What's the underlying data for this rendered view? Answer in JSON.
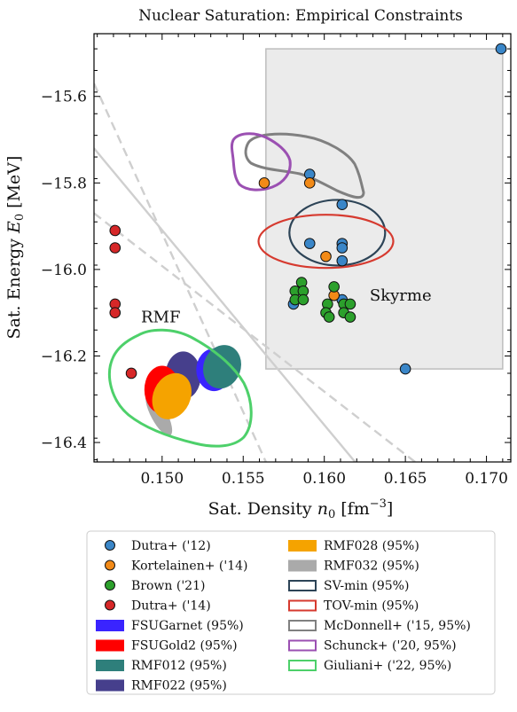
{
  "chart_data": {
    "type": "scatter",
    "title": "Nuclear Saturation: Empirical Constraints",
    "xlabel": "Sat. Density n₀ [fm⁻³]",
    "ylabel": "Sat. Energy E₀ [MeV]",
    "xlim": [
      0.1458,
      0.1715
    ],
    "ylim": [
      -16.445,
      -15.455
    ],
    "x_ticks": [
      0.15,
      0.155,
      0.16,
      0.165,
      0.17
    ],
    "x_tick_labels": [
      "0.150",
      "0.155",
      "0.160",
      "0.165",
      "0.170"
    ],
    "y_ticks": [
      -15.6,
      -15.8,
      -16.0,
      -16.2,
      -16.4
    ],
    "y_tick_labels": [
      "−15.6",
      "−15.8",
      "−16.0",
      "−16.2",
      "−16.4"
    ],
    "grid": false,
    "annotations": [
      {
        "text": "RMF",
        "x": 0.1487,
        "y": -16.11
      },
      {
        "text": "Skyrme",
        "x": 0.1628,
        "y": -16.06
      }
    ],
    "skyrme_box": {
      "x": [
        0.1564,
        0.171
      ],
      "y": [
        -16.23,
        -15.49
      ],
      "color": "#ebebeb"
    },
    "bands": [
      {
        "kind": "dashed",
        "x1": 0.1458,
        "y1": -15.57,
        "x2": 0.1564,
        "y2": -16.445
      },
      {
        "kind": "solid",
        "x1": 0.1458,
        "y1": -15.72,
        "x2": 0.1619,
        "y2": -16.445
      },
      {
        "kind": "dashed",
        "x1": 0.1458,
        "y1": -15.87,
        "x2": 0.1656,
        "y2": -16.445
      }
    ],
    "series": [
      {
        "name": "Dutra+ ('12)",
        "marker": "circle",
        "color": "#3a86c8",
        "points": [
          [
            0.1709,
            -15.49
          ],
          [
            0.1591,
            -15.78
          ],
          [
            0.1611,
            -15.85
          ],
          [
            0.1591,
            -15.94
          ],
          [
            0.1611,
            -15.94
          ],
          [
            0.1611,
            -15.95
          ],
          [
            0.1611,
            -15.98
          ],
          [
            0.1581,
            -16.08
          ],
          [
            0.1611,
            -16.07
          ],
          [
            0.165,
            -16.23
          ]
        ]
      },
      {
        "name": "Kortelainen+ ('14)",
        "marker": "circle",
        "color": "#f28a17",
        "points": [
          [
            0.1563,
            -15.8
          ],
          [
            0.1591,
            -15.8
          ],
          [
            0.1601,
            -15.97
          ],
          [
            0.1606,
            -16.06
          ]
        ]
      },
      {
        "name": "Brown ('21)",
        "marker": "circle",
        "color": "#2ca02c",
        "points": [
          [
            0.1582,
            -16.05
          ],
          [
            0.1586,
            -16.03
          ],
          [
            0.1582,
            -16.07
          ],
          [
            0.1587,
            -16.05
          ],
          [
            0.1587,
            -16.07
          ],
          [
            0.1606,
            -16.04
          ],
          [
            0.1602,
            -16.08
          ],
          [
            0.1612,
            -16.08
          ],
          [
            0.1616,
            -16.08
          ],
          [
            0.1601,
            -16.1
          ],
          [
            0.1603,
            -16.11
          ],
          [
            0.1612,
            -16.1
          ],
          [
            0.1616,
            -16.11
          ]
        ]
      },
      {
        "name": "Dutra+ ('14)",
        "marker": "circle",
        "color": "#d62728",
        "points": [
          [
            0.1471,
            -15.91
          ],
          [
            0.1471,
            -15.95
          ],
          [
            0.1471,
            -16.08
          ],
          [
            0.1471,
            -16.1
          ],
          [
            0.1481,
            -16.24
          ]
        ]
      }
    ],
    "ellipses": [
      {
        "name": "RMF032 (95%)",
        "color": "#aaaaaa",
        "cx": 0.1498,
        "cy": -16.335,
        "rx": 9,
        "ry": 27,
        "rot": -28
      },
      {
        "name": "RMF022 (95%)",
        "color": "#463f8c",
        "cx": 0.1513,
        "cy": -16.245,
        "rx": 20,
        "ry": 27,
        "rot": 0
      },
      {
        "name": "FSUGold2 (95%)",
        "color": "#ff0000",
        "cx": 0.15,
        "cy": -16.278,
        "rx": 20,
        "ry": 27,
        "rot": 0
      },
      {
        "name": "FSUGarnet (95%)",
        "color": "#3a24ff",
        "cx": 0.1532,
        "cy": -16.232,
        "rx": 20,
        "ry": 24,
        "rot": 0
      },
      {
        "name": "RMF028 (95%)",
        "color": "#f5a300",
        "cx": 0.1506,
        "cy": -16.293,
        "rx": 21,
        "ry": 27,
        "rot": 25
      },
      {
        "name": "RMF012 (95%)",
        "color": "#2e7f7b",
        "cx": 0.1537,
        "cy": -16.225,
        "rx": 21,
        "ry": 25,
        "rot": 20
      }
    ],
    "contours": [
      {
        "name": "SV-min (95%)",
        "color": "#2d4457",
        "shape": "ellipse",
        "cx": 0.1608,
        "cy": -15.915,
        "rx": 54,
        "ry": 37,
        "rot": 0
      },
      {
        "name": "TOV-min (95%)",
        "color": "#d63a2f",
        "shape": "ellipse",
        "cx": 0.1601,
        "cy": -15.935,
        "rx": 76,
        "ry": 30,
        "rot": 0
      },
      {
        "name": "McDonnell+ ('15, 95%)",
        "color": "#808080",
        "shape": "blob"
      },
      {
        "name": "Schunck+ ('20, 95%)",
        "color": "#9b50b2",
        "shape": "blob"
      },
      {
        "name": "Giuliani+ ('22, 95%)",
        "color": "#4dd06a",
        "shape": "blob"
      }
    ],
    "legend": {
      "placement": "bottom",
      "columns": [
        [
          "Dutra+ ('12)",
          "Kortelainen+ ('14)",
          "Brown ('21)",
          "Dutra+ ('14)",
          "FSUGarnet (95%)",
          "FSUGold2 (95%)",
          "RMF012 (95%)",
          "RMF022 (95%)"
        ],
        [
          "RMF028 (95%)",
          "RMF032 (95%)",
          "SV-min (95%)",
          "TOV-min (95%)",
          "McDonnell+ ('15, 95%)",
          "Schunck+ ('20, 95%)",
          "Giuliani+ ('22, 95%)"
        ]
      ]
    }
  }
}
